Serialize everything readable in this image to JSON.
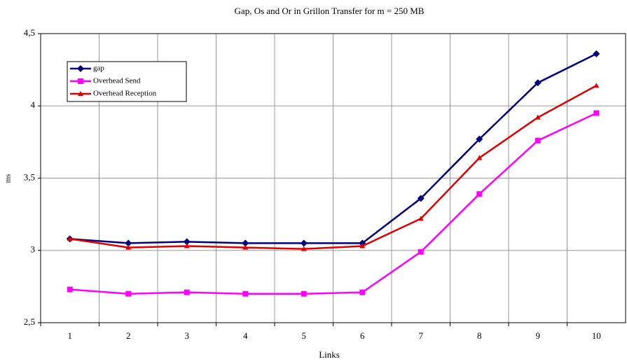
{
  "chart_data": {
    "type": "line",
    "title": "Gap, Os and Or in Grillon Transfer for m = 250 MB",
    "x_label": "Links",
    "y_label": "ms",
    "categories": [
      "1",
      "2",
      "3",
      "4",
      "5",
      "6",
      "7",
      "8",
      "9",
      "10"
    ],
    "series": [
      {
        "name": "gap",
        "color": "#00007f",
        "marker": "diamond",
        "values": [
          3.08,
          3.05,
          3.06,
          3.05,
          3.05,
          3.05,
          3.36,
          3.77,
          4.16,
          4.36
        ]
      },
      {
        "name": "Overhead Send",
        "color": "#ff00ff",
        "marker": "square",
        "values": [
          2.73,
          2.7,
          2.71,
          2.7,
          2.7,
          2.71,
          2.99,
          3.39,
          3.76,
          3.95
        ]
      },
      {
        "name": "Overhead Reception",
        "color": "#e00000",
        "marker": "triangle",
        "values": [
          3.08,
          3.02,
          3.03,
          3.02,
          3.01,
          3.03,
          3.22,
          3.64,
          3.92,
          4.14
        ]
      }
    ],
    "ylim": [
      2.5,
      4.5
    ],
    "yticks": [
      {
        "value": 2.5,
        "label": "2,5"
      },
      3,
      {
        "value": 3.5,
        "label": "3,5"
      },
      4,
      {
        "value": 4.5,
        "label": "4,5"
      }
    ],
    "grid": true,
    "legend": "upper left"
  }
}
